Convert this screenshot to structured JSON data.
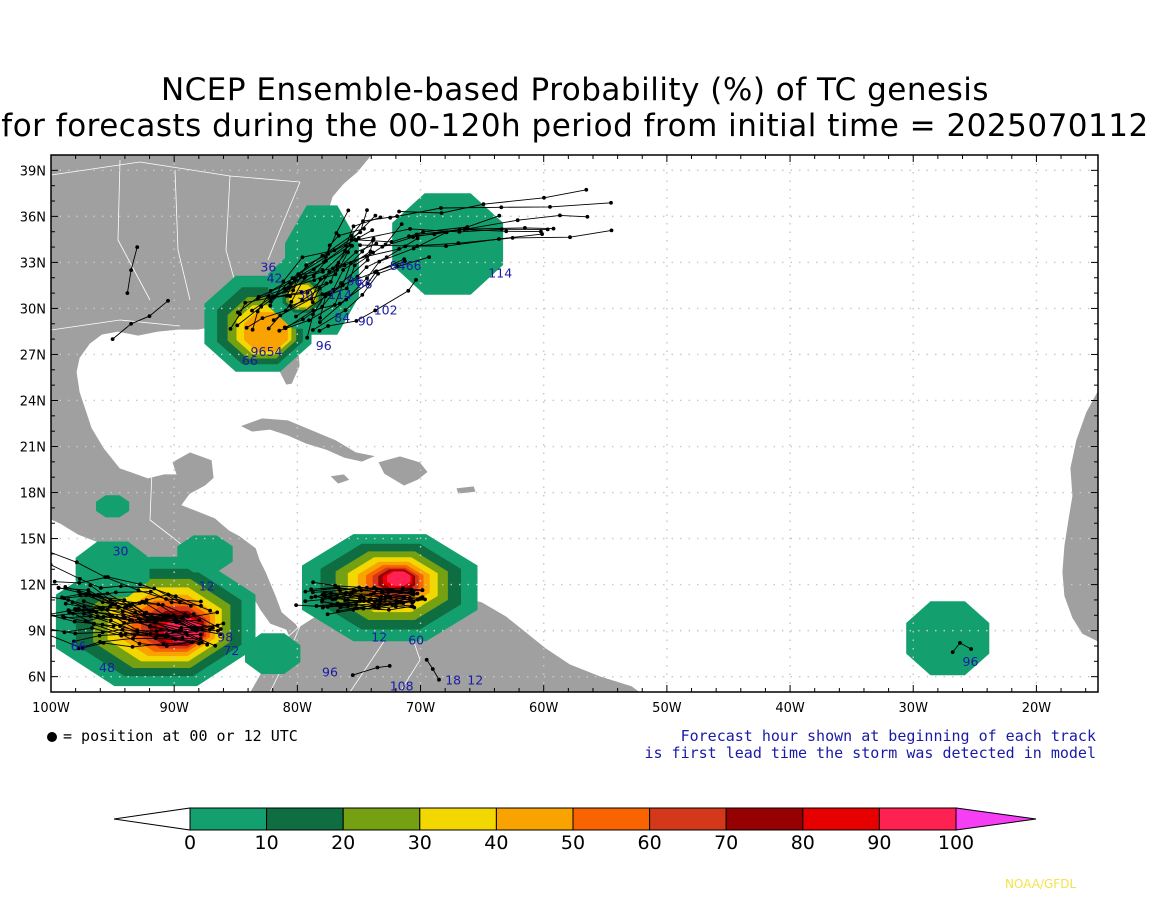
{
  "title": {
    "line1": "NCEP Ensemble-based Probability (%) of TC genesis",
    "line2": "for forecasts during the 00-120h period from initial time = 2025070112"
  },
  "map": {
    "lon_range": [
      -100,
      -15
    ],
    "lat_range": [
      5,
      40
    ],
    "lat_labels": [
      "39N",
      "36N",
      "33N",
      "30N",
      "27N",
      "24N",
      "21N",
      "18N",
      "15N",
      "12N",
      "9N",
      "6N"
    ],
    "lon_labels": [
      "100W",
      "90W",
      "80W",
      "70W",
      "60W",
      "50W",
      "40W",
      "30W",
      "20W"
    ],
    "colors": {
      "land": "#a0a0a0",
      "ocean": "#ffffff",
      "border": "#ffffff",
      "grid": "#c8c8c8",
      "track": "#000000",
      "hour_label": "#1a1aa6"
    }
  },
  "genesis_regions": [
    {
      "name": "Southeast US / Gulf",
      "levels": [
        10,
        20,
        30,
        40,
        50
      ]
    },
    {
      "name": "Western Atlantic offshore",
      "levels": [
        10
      ]
    },
    {
      "name": "Eastern Pacific off Central America",
      "levels": [
        10,
        20,
        30,
        40,
        50,
        60,
        70,
        80,
        90,
        100
      ]
    },
    {
      "name": "Southern Caribbean",
      "levels": [
        10,
        20,
        30,
        40,
        50,
        60,
        70,
        80,
        90,
        100
      ]
    },
    {
      "name": "Eastern Atlantic near 27W 8N",
      "levels": [
        10
      ]
    },
    {
      "name": "Yucatan",
      "levels": [
        10
      ]
    }
  ],
  "hour_labels": [
    {
      "text": "36",
      "lon": -83.0,
      "lat": 32.4
    },
    {
      "text": "42",
      "lon": -82.5,
      "lat": 31.7
    },
    {
      "text": "84",
      "lon": -72.5,
      "lat": 32.5
    },
    {
      "text": "66",
      "lon": -71.2,
      "lat": 32.5
    },
    {
      "text": "114",
      "lon": -64.5,
      "lat": 32.0
    },
    {
      "text": "96",
      "lon": -76.0,
      "lat": 31.5
    },
    {
      "text": "66",
      "lon": -75.2,
      "lat": 31.3
    },
    {
      "text": "30",
      "lon": -80.0,
      "lat": 30.6
    },
    {
      "text": "114",
      "lon": -77.5,
      "lat": 30.6
    },
    {
      "text": "102",
      "lon": -73.8,
      "lat": 29.6
    },
    {
      "text": "84",
      "lon": -77.0,
      "lat": 29.1
    },
    {
      "text": "90",
      "lon": -75.1,
      "lat": 28.9
    },
    {
      "text": "96",
      "lon": -78.5,
      "lat": 27.3
    },
    {
      "text": "96",
      "lon": -83.8,
      "lat": 26.9
    },
    {
      "text": "54",
      "lon": -82.5,
      "lat": 26.9
    },
    {
      "text": "66",
      "lon": -84.5,
      "lat": 26.3
    },
    {
      "text": "30",
      "lon": -95.0,
      "lat": 13.9
    },
    {
      "text": "12",
      "lon": -88.0,
      "lat": 11.6
    },
    {
      "text": "98",
      "lon": -86.5,
      "lat": 8.3
    },
    {
      "text": "72",
      "lon": -86.0,
      "lat": 7.4
    },
    {
      "text": "66",
      "lon": -98.4,
      "lat": 7.7
    },
    {
      "text": "48",
      "lon": -96.1,
      "lat": 6.3
    },
    {
      "text": "96",
      "lon": -78.0,
      "lat": 6.0
    },
    {
      "text": "12",
      "lon": -74.0,
      "lat": 8.3
    },
    {
      "text": "60",
      "lon": -71.0,
      "lat": 8.1
    },
    {
      "text": "108",
      "lon": -72.5,
      "lat": 5.1
    },
    {
      "text": "18",
      "lon": -68.0,
      "lat": 5.5
    },
    {
      "text": "12",
      "lon": -66.2,
      "lat": 5.5
    },
    {
      "text": "96",
      "lon": -26.0,
      "lat": 6.7
    }
  ],
  "legend": {
    "dot_label": "= position at 00 or 12 UTC",
    "forecast_note_line1": "Forecast hour shown at beginning of each track",
    "forecast_note_line2": "is first lead time the storm was detected in model"
  },
  "colorbar": {
    "labels": [
      "0",
      "10",
      "20",
      "30",
      "40",
      "50",
      "60",
      "70",
      "80",
      "90",
      "100"
    ],
    "colors": [
      "#ffffff",
      "#13a06e",
      "#0f6e41",
      "#74a012",
      "#f2d800",
      "#f9a300",
      "#f96300",
      "#d4381b",
      "#960000",
      "#e60000",
      "#ff2152",
      "#f63ef4"
    ]
  },
  "credit": "NOAA/GFDL"
}
